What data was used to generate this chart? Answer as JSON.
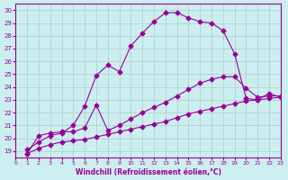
{
  "xlabel": "Windchill (Refroidissement éolien,°C)",
  "bg_color": "#cceeee",
  "line_color": "#990099",
  "xlim": [
    0,
    23
  ],
  "ylim": [
    18.5,
    30.5
  ],
  "xticks": [
    0,
    1,
    2,
    3,
    4,
    5,
    6,
    7,
    8,
    9,
    10,
    11,
    12,
    13,
    14,
    15,
    16,
    17,
    18,
    19,
    20,
    21,
    22,
    23
  ],
  "yticks": [
    19,
    20,
    21,
    22,
    23,
    24,
    25,
    26,
    27,
    28,
    29,
    30
  ],
  "line1_x": [
    1,
    2,
    3,
    4,
    5,
    6,
    7,
    8,
    9,
    10,
    11,
    12,
    13,
    14,
    15,
    16,
    17,
    18,
    19,
    20,
    21,
    22,
    23
  ],
  "line1_y": [
    19.1,
    19.7,
    20.2,
    20.4,
    21.0,
    22.5,
    24.9,
    25.7,
    25.2,
    27.2,
    28.2,
    29.1,
    29.8,
    29.8,
    29.4,
    29.1,
    29.0,
    28.4,
    26.6,
    23.1,
    23.0,
    23.5,
    23.2
  ],
  "line2_x": [
    1,
    2,
    3,
    4,
    5,
    6,
    7,
    8,
    9,
    10,
    11,
    12,
    13,
    14,
    15,
    16,
    17,
    18,
    19,
    20,
    21,
    22,
    23
  ],
  "line2_y": [
    18.8,
    20.2,
    20.4,
    20.5,
    20.5,
    20.8,
    22.6,
    20.6,
    21.0,
    21.5,
    22.0,
    22.4,
    22.8,
    23.3,
    23.8,
    24.3,
    24.6,
    24.8,
    24.8,
    23.9,
    23.2,
    23.3,
    23.3
  ],
  "line3_x": [
    1,
    2,
    3,
    4,
    5,
    6,
    7,
    8,
    9,
    10,
    11,
    12,
    13,
    14,
    15,
    16,
    17,
    18,
    19,
    20,
    21,
    22,
    23
  ],
  "line3_y": [
    18.8,
    19.2,
    19.5,
    19.7,
    19.8,
    19.9,
    20.1,
    20.3,
    20.5,
    20.7,
    20.9,
    21.1,
    21.3,
    21.6,
    21.9,
    22.1,
    22.3,
    22.5,
    22.7,
    22.9,
    23.0,
    23.1,
    23.2
  ]
}
